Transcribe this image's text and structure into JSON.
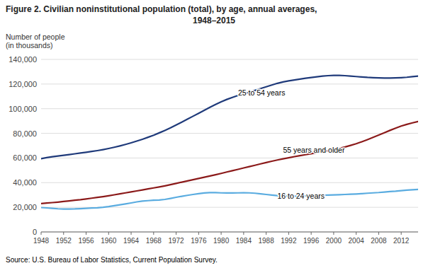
{
  "chart_data": {
    "type": "line",
    "title": "Figure 2. Civilian noninstitutional population (total), by age, annual averages,",
    "subtitle": "1948–2015",
    "ylabel": "Number of people\n(in thousands)",
    "source": "Source: U.S. Bureau of Labor Statistics, Current Population Survey.",
    "x": [
      1948,
      1949,
      1950,
      1951,
      1952,
      1953,
      1954,
      1955,
      1956,
      1957,
      1958,
      1959,
      1960,
      1961,
      1962,
      1963,
      1964,
      1965,
      1966,
      1967,
      1968,
      1969,
      1970,
      1971,
      1972,
      1973,
      1974,
      1975,
      1976,
      1977,
      1978,
      1979,
      1980,
      1981,
      1982,
      1983,
      1984,
      1985,
      1986,
      1987,
      1988,
      1989,
      1990,
      1991,
      1992,
      1993,
      1994,
      1995,
      1996,
      1997,
      1998,
      1999,
      2000,
      2001,
      2002,
      2003,
      2004,
      2005,
      2006,
      2007,
      2008,
      2009,
      2010,
      2011,
      2012,
      2013,
      2014,
      2015
    ],
    "series": [
      {
        "name": "25 to 54 years",
        "color": "#1f3a7a",
        "values": [
          59500,
          60300,
          61000,
          61600,
          62200,
          62800,
          63400,
          64000,
          64600,
          65300,
          66000,
          66800,
          67700,
          68700,
          69800,
          71000,
          72300,
          73700,
          75200,
          76800,
          78500,
          80400,
          82400,
          84500,
          86800,
          89100,
          91500,
          93900,
          96300,
          98700,
          101100,
          103400,
          105600,
          107500,
          109200,
          110700,
          112000,
          113400,
          114800,
          116300,
          117800,
          119200,
          120600,
          121700,
          122600,
          123300,
          124000,
          124700,
          125300,
          125900,
          126400,
          126800,
          127000,
          127000,
          126800,
          126500,
          126100,
          125700,
          125400,
          125200,
          125000,
          124900,
          124900,
          125000,
          125200,
          125500,
          126000,
          126500
        ]
      },
      {
        "name": "55 years and older",
        "color": "#8B1a1a",
        "values": [
          23000,
          23400,
          23800,
          24200,
          24700,
          25200,
          25700,
          26200,
          26800,
          27400,
          28000,
          28600,
          29300,
          30100,
          30900,
          31700,
          32500,
          33300,
          34100,
          34900,
          35700,
          36500,
          37400,
          38400,
          39400,
          40400,
          41400,
          42400,
          43400,
          44400,
          45400,
          46400,
          47500,
          48600,
          49700,
          50800,
          51900,
          53000,
          54100,
          55200,
          56300,
          57400,
          58400,
          59300,
          60200,
          61100,
          61900,
          62700,
          63500,
          64300,
          65100,
          65900,
          66800,
          67800,
          68900,
          70200,
          71600,
          73200,
          74900,
          76700,
          78600,
          80500,
          82400,
          84200,
          85900,
          87300,
          88500,
          89600
        ]
      },
      {
        "name": "16 to 24 years",
        "color": "#5aace0",
        "values": [
          19800,
          19500,
          19200,
          18800,
          18600,
          18600,
          18700,
          18900,
          19200,
          19400,
          19600,
          20000,
          20600,
          21300,
          22000,
          22700,
          23500,
          24400,
          25000,
          25400,
          25700,
          25900,
          26400,
          27200,
          28100,
          28900,
          29700,
          30400,
          31100,
          31600,
          31900,
          31900,
          31700,
          31600,
          31600,
          31700,
          31800,
          31700,
          31400,
          30900,
          30400,
          29900,
          29500,
          29200,
          29000,
          29000,
          29100,
          29200,
          29400,
          29600,
          29800,
          29900,
          30000,
          30200,
          30400,
          30600,
          30800,
          31100,
          31400,
          31700,
          32000,
          32400,
          32800,
          33100,
          33500,
          33900,
          34200,
          34500
        ]
      }
    ],
    "annotations": [
      {
        "text": "25 to 54 years",
        "x": 1983,
        "y": 111000
      },
      {
        "text": "55 years and older",
        "x": 1991,
        "y": 64500
      },
      {
        "text": "16 to 24 years",
        "x": 1990,
        "y": 27000
      }
    ],
    "xlim": [
      1948,
      2015
    ],
    "xticks": [
      1948,
      1952,
      1956,
      1960,
      1964,
      1968,
      1972,
      1976,
      1980,
      1984,
      1988,
      1992,
      1996,
      2000,
      2004,
      2008,
      2012
    ],
    "ylim": [
      0,
      140000
    ],
    "yticks": [
      {
        "value": 0,
        "label": "0"
      },
      {
        "value": 20000,
        "label": "20,000"
      },
      {
        "value": 40000,
        "label": "40,000"
      },
      {
        "value": 60000,
        "label": "60,000"
      },
      {
        "value": 80000,
        "label": "80,000"
      },
      {
        "value": 100000,
        "label": "100,000"
      },
      {
        "value": 120000,
        "label": "120,000"
      },
      {
        "value": 140000,
        "label": "140,000"
      }
    ],
    "grid": true
  }
}
